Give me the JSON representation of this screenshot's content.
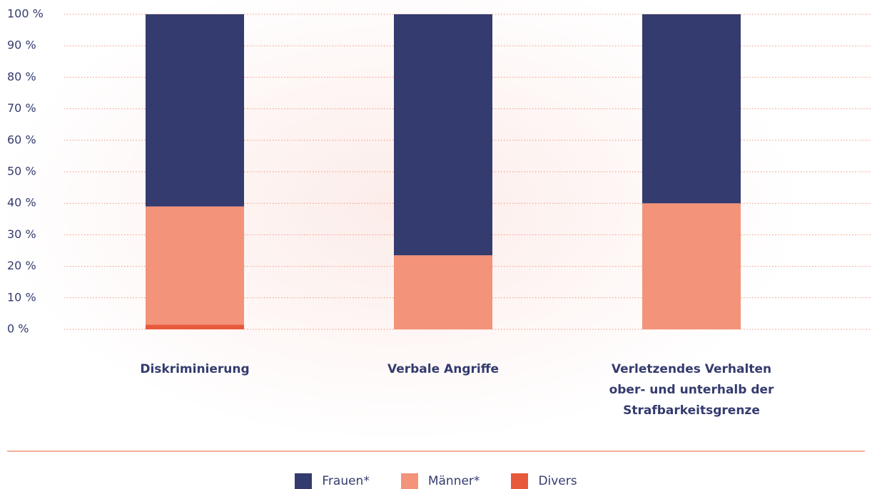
{
  "chart_data": {
    "type": "stacked-bar",
    "categories": [
      "Diskriminierung",
      "Verbale Angriffe",
      "Verletzendes Verhalten ober- und unterhalb der Strafbarkeitsgrenze"
    ],
    "series": [
      {
        "name": "Divers",
        "color": "#e8593c",
        "values": [
          1.5,
          0,
          0
        ]
      },
      {
        "name": "Männer*",
        "color": "#f2937a",
        "values": [
          37.5,
          23.5,
          40
        ]
      },
      {
        "name": "Frauen*",
        "color": "#343b6e",
        "values": [
          61,
          76.5,
          60
        ]
      }
    ],
    "legend_order": [
      "Frauen*",
      "Männer*",
      "Divers"
    ],
    "ylim": [
      0,
      100
    ],
    "yticks": [
      {
        "value": 0,
        "label": "0 %"
      },
      {
        "value": 10,
        "label": "10 %"
      },
      {
        "value": 20,
        "label": "20 %"
      },
      {
        "value": 30,
        "label": "30 %"
      },
      {
        "value": 40,
        "label": "40 %"
      },
      {
        "value": 50,
        "label": "50 %"
      },
      {
        "value": 60,
        "label": "60 %"
      },
      {
        "value": 70,
        "label": "70 %"
      },
      {
        "value": 80,
        "label": "80 %"
      },
      {
        "value": 90,
        "label": "90 %"
      },
      {
        "value": 100,
        "label": "100 %"
      }
    ],
    "grid": true
  }
}
